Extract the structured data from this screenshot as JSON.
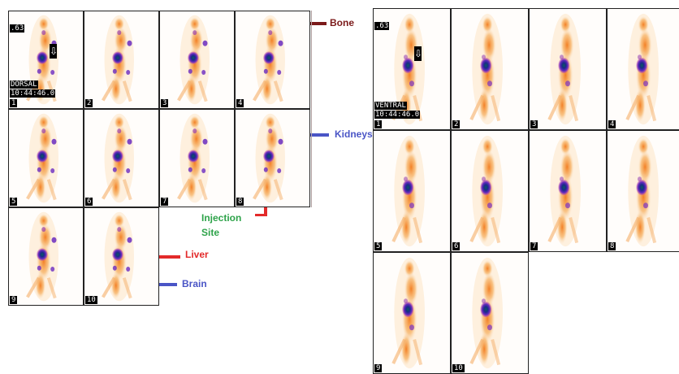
{
  "dorsal": {
    "frames": [
      "1",
      "2",
      "3",
      "4",
      "5",
      "6",
      "7",
      "8",
      "9",
      "10"
    ],
    "scale": ".63",
    "view": "DORSAL",
    "time": "10:44:46.0"
  },
  "ventral": {
    "frames": [
      "1",
      "2",
      "3",
      "4",
      "5",
      "6",
      "7",
      "8",
      "9",
      "10"
    ],
    "scale": ".63",
    "view": "VENTRAL",
    "time": "10:44:46.0"
  },
  "marker_glyph": "⇩",
  "annotations": {
    "bone": {
      "label": "Bone",
      "color": "#7b1a1a"
    },
    "kidneys": {
      "label": "Kidneys",
      "color": "#4a55c6"
    },
    "injection": {
      "label_line1": "Injection",
      "label_line2": "Site",
      "color": "#2ea34a",
      "line_color": "#e32a2a"
    },
    "liver": {
      "label": "Liver",
      "color": "#e32a2a"
    },
    "brain": {
      "label": "Brain",
      "color": "#4a55c6"
    }
  }
}
